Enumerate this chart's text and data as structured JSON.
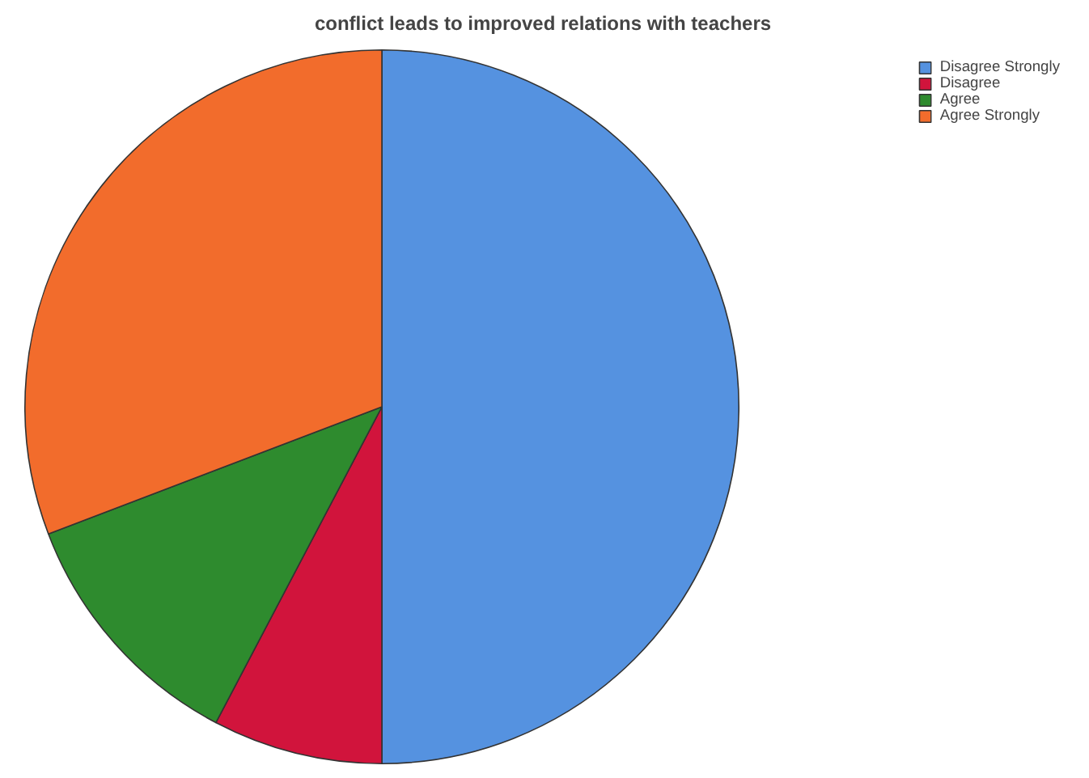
{
  "chart_data": {
    "type": "pie",
    "title": "conflict leads to improved relations with teachers",
    "categories": [
      "Disagree Strongly",
      "Disagree",
      "Agree",
      "Agree Strongly"
    ],
    "values": [
      50,
      7.7,
      11.5,
      30.8
    ],
    "colors": [
      "#5592e0",
      "#d1143c",
      "#2e8b2e",
      "#f26c2c"
    ],
    "legend": "top right"
  }
}
